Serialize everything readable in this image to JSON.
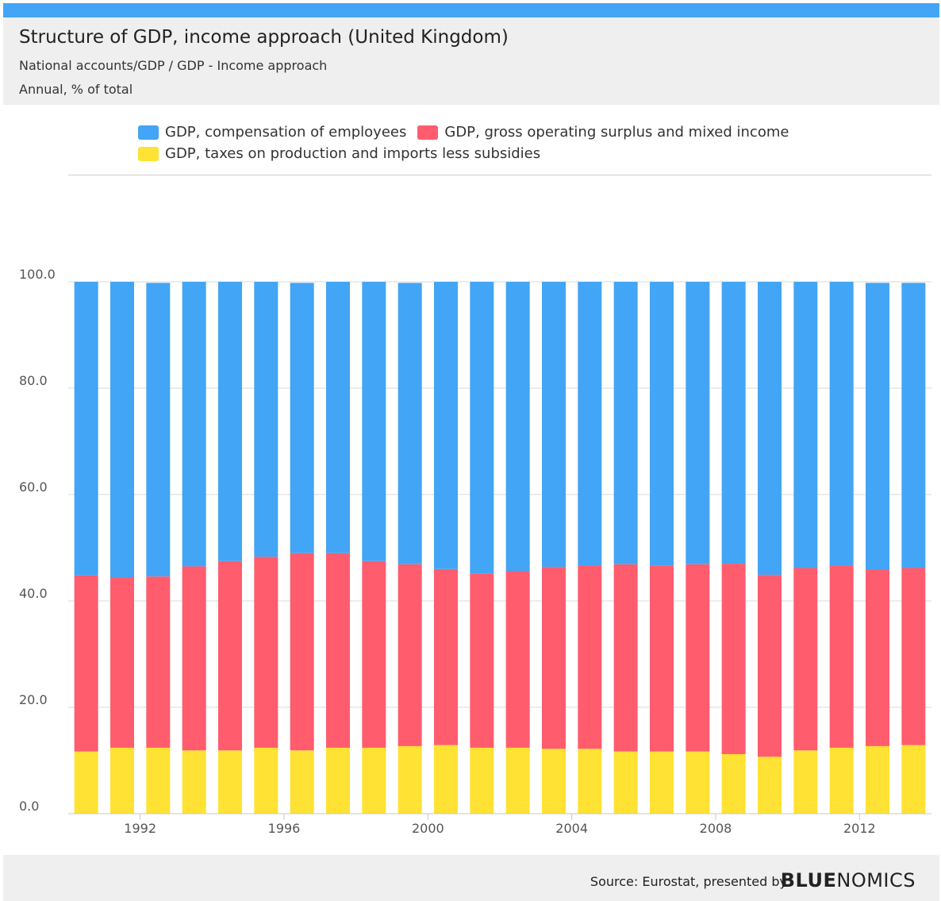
{
  "header": {
    "title": "Structure of GDP, income approach (United Kingdom)",
    "subtitle": "National accounts/GDP / GDP - Income approach",
    "unit": "Annual, % of total"
  },
  "footer": {
    "source": "Source: Eurostat, presented by",
    "logo_bold": "BLUE",
    "logo_light": "NOMICS"
  },
  "colors": {
    "accent_bar": "#42a5f5",
    "compensation": "#42a5f5",
    "surplus": "#ff5c6e",
    "taxes": "#ffe233",
    "grid": "#d9d9d9"
  },
  "chart_data": {
    "type": "bar",
    "stacked": true,
    "categories": [
      "1990",
      "1991",
      "1992",
      "1993",
      "1994",
      "1995",
      "1996",
      "1997",
      "1998",
      "1999",
      "2000",
      "2001",
      "2002",
      "2003",
      "2004",
      "2005",
      "2006",
      "2007",
      "2008",
      "2009",
      "2010",
      "2011",
      "2012",
      "2013"
    ],
    "x_tick_labels": [
      "1992",
      "1996",
      "2000",
      "2004",
      "2008",
      "2012"
    ],
    "y_tick_labels": [
      "0.0",
      "20.0",
      "40.0",
      "60.0",
      "80.0",
      "100.0"
    ],
    "ylim": [
      0,
      100
    ],
    "grid": true,
    "legend_position": "top",
    "series": [
      {
        "name": "GDP, taxes on production and imports less subsidies",
        "color": "#ffe233",
        "values": [
          11.7,
          12.4,
          12.4,
          11.9,
          11.9,
          12.4,
          11.9,
          12.4,
          12.4,
          12.7,
          12.9,
          12.4,
          12.4,
          12.2,
          12.2,
          11.7,
          11.7,
          11.7,
          11.2,
          10.7,
          11.9,
          12.4,
          12.7,
          12.9
        ]
      },
      {
        "name": "GDP, gross operating surplus and mixed income",
        "color": "#ff5c6e",
        "values": [
          33.1,
          32.0,
          32.2,
          34.6,
          35.6,
          35.9,
          37.1,
          36.6,
          35.1,
          34.2,
          33.1,
          32.7,
          33.2,
          34.2,
          34.5,
          35.2,
          34.9,
          35.2,
          35.8,
          34.2,
          34.3,
          34.3,
          33.2,
          33.3
        ]
      },
      {
        "name": "GDP, compensation of employees",
        "color": "#42a5f5",
        "values": [
          55.2,
          55.6,
          55.2,
          53.5,
          52.5,
          51.7,
          50.8,
          51.0,
          52.5,
          52.9,
          54.0,
          54.9,
          54.4,
          53.6,
          53.3,
          53.1,
          53.4,
          53.1,
          53.0,
          55.1,
          53.8,
          53.3,
          53.9,
          53.6
        ]
      }
    ]
  },
  "legend": {
    "items": [
      {
        "label": "GDP, compensation of employees",
        "color": "#42a5f5"
      },
      {
        "label": "GDP, gross operating surplus and mixed income",
        "color": "#ff5c6e"
      },
      {
        "label": "GDP, taxes on production and imports less subsidies",
        "color": "#ffe233"
      }
    ]
  }
}
